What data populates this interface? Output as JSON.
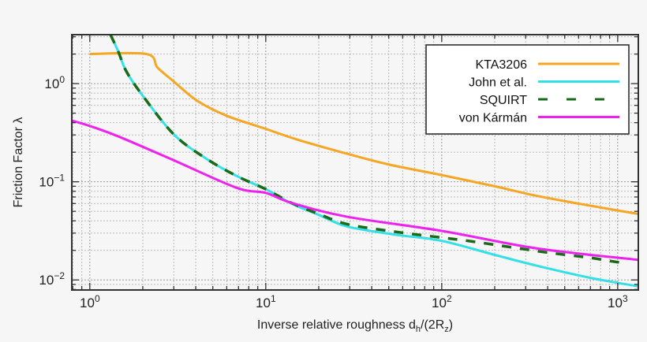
{
  "chart_data": {
    "type": "line",
    "title": "",
    "xlabel": "Inverse relative roughness d",
    "xlabel_sub1": "h",
    "xlabel_mid": "/(2R",
    "xlabel_sub2": "z",
    "xlabel_end": ")",
    "ylabel": "Friction Factor λ",
    "xscale": "log",
    "yscale": "log",
    "xlim": [
      0.79,
      1310
    ],
    "ylim": [
      0.0079,
      3.15
    ],
    "xticks": [
      {
        "v": 1,
        "base": "10",
        "exp": "0"
      },
      {
        "v": 10,
        "base": "10",
        "exp": "1"
      },
      {
        "v": 100,
        "base": "10",
        "exp": "2"
      },
      {
        "v": 1000,
        "base": "10",
        "exp": "3"
      }
    ],
    "yticks": [
      {
        "v": 1,
        "base": "10",
        "exp": "0"
      },
      {
        "v": 0.1,
        "base": "10",
        "exp": "−1"
      },
      {
        "v": 0.01,
        "base": "10",
        "exp": "−2"
      }
    ],
    "grid": true,
    "legend_position": "top-right",
    "series": [
      {
        "name": "KTA3206",
        "color": "#f5a623",
        "dash": "none",
        "points": [
          [
            1,
            2.0
          ],
          [
            2.1,
            2.0
          ],
          [
            2.43,
            1.45
          ],
          [
            3,
            1.05
          ],
          [
            4.07,
            0.67
          ],
          [
            6,
            0.47
          ],
          [
            9.8,
            0.35
          ],
          [
            15,
            0.27
          ],
          [
            29,
            0.193
          ],
          [
            50,
            0.15
          ],
          [
            100,
            0.117
          ],
          [
            200,
            0.09
          ],
          [
            345,
            0.072
          ],
          [
            700,
            0.057
          ],
          [
            1310,
            0.047
          ]
        ]
      },
      {
        "name": "John et al.",
        "color": "#33e0e8",
        "dash": "none",
        "points": [
          [
            1.31,
            3.15
          ],
          [
            1.45,
            2.13
          ],
          [
            1.61,
            1.34
          ],
          [
            1.98,
            0.77
          ],
          [
            2.99,
            0.306
          ],
          [
            4.5,
            0.176
          ],
          [
            6.8,
            0.115
          ],
          [
            10,
            0.084
          ],
          [
            14,
            0.06
          ],
          [
            20,
            0.046
          ],
          [
            29,
            0.035
          ],
          [
            54,
            0.029
          ],
          [
            100,
            0.025
          ],
          [
            200,
            0.018
          ],
          [
            345,
            0.014
          ],
          [
            700,
            0.0105
          ],
          [
            1310,
            0.0086
          ]
        ]
      },
      {
        "name": "SQUIRT",
        "color": "#1a6a1a",
        "dash": "dashed",
        "points": [
          [
            1.31,
            3.15
          ],
          [
            1.45,
            2.13
          ],
          [
            1.61,
            1.34
          ],
          [
            1.98,
            0.77
          ],
          [
            2.99,
            0.306
          ],
          [
            4.5,
            0.176
          ],
          [
            6.8,
            0.115
          ],
          [
            10,
            0.084
          ],
          [
            14,
            0.061
          ],
          [
            20,
            0.047
          ],
          [
            29,
            0.037
          ],
          [
            54,
            0.031
          ],
          [
            100,
            0.027
          ],
          [
            141,
            0.025
          ],
          [
            250,
            0.0215
          ],
          [
            400,
            0.019
          ],
          [
            700,
            0.0168
          ],
          [
            970,
            0.0153
          ],
          [
            1100,
            0.015
          ]
        ]
      },
      {
        "name": "von Kármán",
        "color": "#ee22ee",
        "dash": "none",
        "points": [
          [
            0.79,
            0.42
          ],
          [
            1,
            0.37
          ],
          [
            1.45,
            0.29
          ],
          [
            2.99,
            0.166
          ],
          [
            6.8,
            0.087
          ],
          [
            10,
            0.077
          ],
          [
            14,
            0.061
          ],
          [
            29,
            0.044
          ],
          [
            100,
            0.0316
          ],
          [
            345,
            0.021
          ],
          [
            1310,
            0.016
          ]
        ]
      }
    ]
  }
}
